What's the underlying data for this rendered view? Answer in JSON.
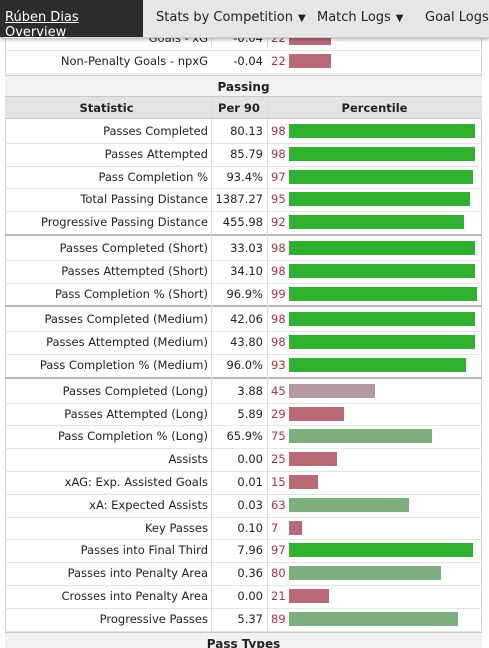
{
  "nav": {
    "active": "Rúben Dias Overview",
    "items": [
      "Stats by Competition",
      "Match Logs",
      "Goal Logs"
    ]
  },
  "top_rows": [
    {
      "stat": "Goals - xG",
      "per90": "-0.04",
      "percentile": 22
    },
    {
      "stat": "Non-Penalty Goals - npxG",
      "per90": "-0.04",
      "percentile": 22
    }
  ],
  "passing": {
    "title": "Passing",
    "columns": [
      "Statistic",
      "Per 90",
      "Percentile"
    ],
    "groups": [
      [
        {
          "stat": "Passes Completed",
          "per90": "80.13",
          "percentile": 98
        },
        {
          "stat": "Passes Attempted",
          "per90": "85.79",
          "percentile": 98
        },
        {
          "stat": "Pass Completion %",
          "per90": "93.4%",
          "percentile": 97
        },
        {
          "stat": "Total Passing Distance",
          "per90": "1387.27",
          "percentile": 95
        },
        {
          "stat": "Progressive Passing Distance",
          "per90": "455.98",
          "percentile": 92
        }
      ],
      [
        {
          "stat": "Passes Completed (Short)",
          "per90": "33.03",
          "percentile": 98
        },
        {
          "stat": "Passes Attempted (Short)",
          "per90": "34.10",
          "percentile": 98
        },
        {
          "stat": "Pass Completion % (Short)",
          "per90": "96.9%",
          "percentile": 99
        }
      ],
      [
        {
          "stat": "Passes Completed (Medium)",
          "per90": "42.06",
          "percentile": 98
        },
        {
          "stat": "Passes Attempted (Medium)",
          "per90": "43.80",
          "percentile": 98
        },
        {
          "stat": "Pass Completion % (Medium)",
          "per90": "96.0%",
          "percentile": 93
        }
      ],
      [
        {
          "stat": "Passes Completed (Long)",
          "per90": "3.88",
          "percentile": 45
        },
        {
          "stat": "Passes Attempted (Long)",
          "per90": "5.89",
          "percentile": 29
        },
        {
          "stat": "Pass Completion % (Long)",
          "per90": "65.9%",
          "percentile": 75
        },
        {
          "stat": "Assists",
          "per90": "0.00",
          "percentile": 25
        },
        {
          "stat": "xAG: Exp. Assisted Goals",
          "per90": "0.01",
          "percentile": 15
        },
        {
          "stat": "xA: Expected Assists",
          "per90": "0.03",
          "percentile": 63
        },
        {
          "stat": "Key Passes",
          "per90": "0.10",
          "percentile": 7
        },
        {
          "stat": "Passes into Final Third",
          "per90": "7.96",
          "percentile": 97
        },
        {
          "stat": "Passes into Penalty Area",
          "per90": "0.36",
          "percentile": 80
        },
        {
          "stat": "Crosses into Penalty Area",
          "per90": "0.00",
          "percentile": 21
        },
        {
          "stat": "Progressive Passes",
          "per90": "5.37",
          "percentile": 89
        }
      ]
    ]
  },
  "next_section": {
    "title": "Pass Types"
  }
}
